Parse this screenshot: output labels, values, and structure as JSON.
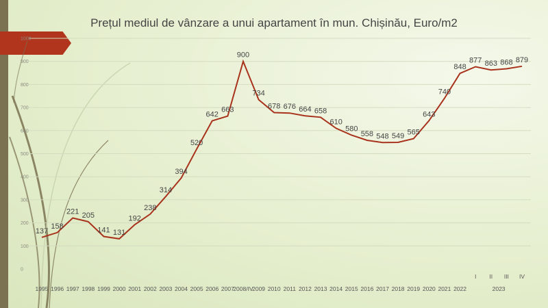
{
  "chart_data": {
    "type": "line",
    "title": "Prețul mediul de vânzare a unui apartament în mun. Chișinău, Euro/m2",
    "xlabel": "",
    "ylabel": "",
    "ylim": [
      0,
      1000
    ],
    "grid": true,
    "legend": "none",
    "yticks": [
      "0",
      "100",
      "200",
      "300",
      "400",
      "500",
      "600",
      "700",
      "800",
      "900",
      "1000"
    ],
    "categories": [
      "1995",
      "1996",
      "1997",
      "1998",
      "1999",
      "2000",
      "2001",
      "2002",
      "2003",
      "2004",
      "2005",
      "2006",
      "2007",
      "2008/IV",
      "2009",
      "2010",
      "2011",
      "2012",
      "2013",
      "2014",
      "2015",
      "2016",
      "2017",
      "2018",
      "2019",
      "2020",
      "2021",
      "2022",
      "I",
      "II",
      "III",
      "IV"
    ],
    "group_label": "2023",
    "series": [
      {
        "values": [
          137,
          158,
          221,
          205,
          141,
          131,
          192,
          238,
          314,
          394,
          520,
          642,
          663,
          900,
          734,
          678,
          676,
          664,
          658,
          610,
          580,
          558,
          548,
          549,
          565,
          643,
          740,
          848,
          877,
          863,
          868,
          879
        ]
      }
    ]
  },
  "colors": {
    "line": "#a8321c",
    "accent": "#b0351c",
    "background": "#e6efcf",
    "sidebar": "#7a7250"
  }
}
